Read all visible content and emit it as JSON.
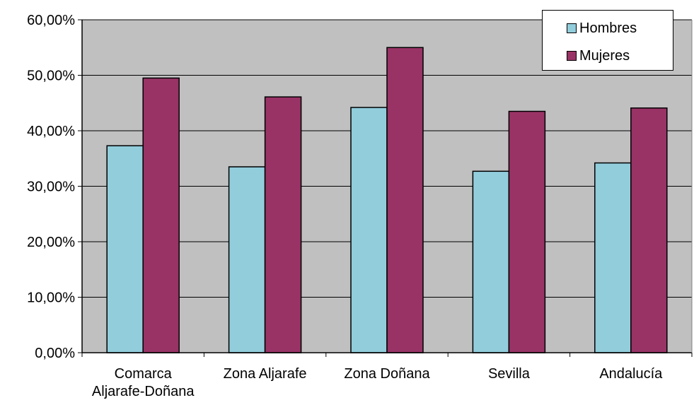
{
  "chart_data": {
    "type": "bar",
    "categories": [
      [
        "Comarca",
        "Aljarafe-Doñana"
      ],
      [
        "Zona Aljarafe"
      ],
      [
        "Zona Doñana"
      ],
      [
        "Sevilla"
      ],
      [
        "Andalucía"
      ]
    ],
    "series": [
      {
        "name": "Hombres",
        "color": "#92CDDC",
        "values": [
          37.3,
          33.5,
          44.2,
          32.7,
          34.2
        ]
      },
      {
        "name": "Mujeres",
        "color": "#993366",
        "values": [
          49.5,
          46.1,
          55.0,
          43.5,
          44.1
        ]
      }
    ],
    "ylim": [
      0,
      60
    ],
    "yticks": [
      "0,00%",
      "10,00%",
      "20,00%",
      "30,00%",
      "40,00%",
      "50,00%",
      "60,00%"
    ],
    "plot_background": "#C0C0C0",
    "grid": true,
    "legend_position": "top-right",
    "title": "",
    "xlabel": "",
    "ylabel": ""
  }
}
